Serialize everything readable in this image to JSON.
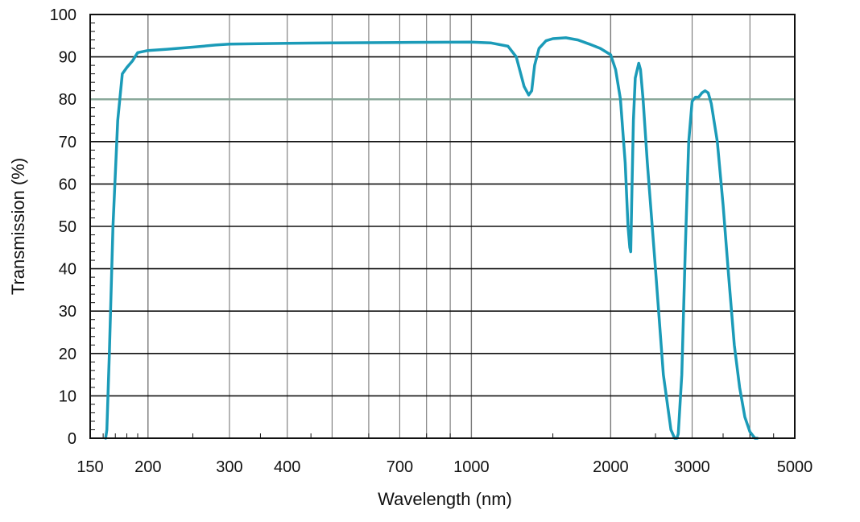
{
  "chart_data": {
    "type": "line",
    "xlabel": "Wavelength (nm)",
    "ylabel": "Transmission (%)",
    "x_scale": "log",
    "xlim": [
      150,
      5000
    ],
    "ylim": [
      0,
      100
    ],
    "grid": true,
    "x_tick_labels": [
      "150",
      "200",
      "300",
      "400",
      "700",
      "1000",
      "2000",
      "3000",
      "5000"
    ],
    "y_tick_labels": [
      "0",
      "10",
      "20",
      "30",
      "40",
      "50",
      "60",
      "70",
      "80",
      "90",
      "100"
    ],
    "colors": {
      "line": "#1b9bb8",
      "grid": "#777777",
      "highlight_grid": "#8aa89a",
      "axis": "#111111"
    },
    "series": [
      {
        "x": [
          162,
          163,
          165,
          168,
          172,
          176,
          180,
          185,
          190,
          200,
          220,
          250,
          280,
          300,
          400,
          500,
          700,
          1000,
          1100,
          1200,
          1250,
          1300,
          1330,
          1350,
          1370,
          1400,
          1450,
          1500,
          1600,
          1700,
          1800,
          1900,
          2000,
          2050,
          2100,
          2150,
          2180,
          2200,
          2210,
          2220,
          2240,
          2260,
          2300,
          2320,
          2350,
          2400,
          2500,
          2600,
          2700,
          2750,
          2780,
          2800,
          2850,
          2900,
          2950,
          3000,
          3050,
          3100,
          3150,
          3200,
          3250,
          3300,
          3400,
          3500,
          3600,
          3700,
          3800,
          3900,
          4000,
          4100,
          4150
        ],
        "y": [
          0,
          2,
          20,
          50,
          75,
          86,
          87.5,
          89,
          91,
          91.5,
          91.8,
          92.3,
          92.8,
          93,
          93.2,
          93.3,
          93.4,
          93.5,
          93.3,
          92.5,
          90,
          83,
          81,
          82,
          88,
          92,
          93.8,
          94.3,
          94.5,
          94,
          93,
          92,
          90.5,
          87,
          80,
          65,
          50,
          45,
          44,
          55,
          75,
          85,
          88.5,
          87,
          80,
          65,
          40,
          15,
          2,
          0,
          0,
          1,
          15,
          45,
          70,
          79.5,
          80.5,
          80.5,
          81.5,
          82,
          81.5,
          79,
          70,
          55,
          38,
          22,
          12,
          5,
          1.5,
          0,
          0
        ]
      }
    ]
  }
}
